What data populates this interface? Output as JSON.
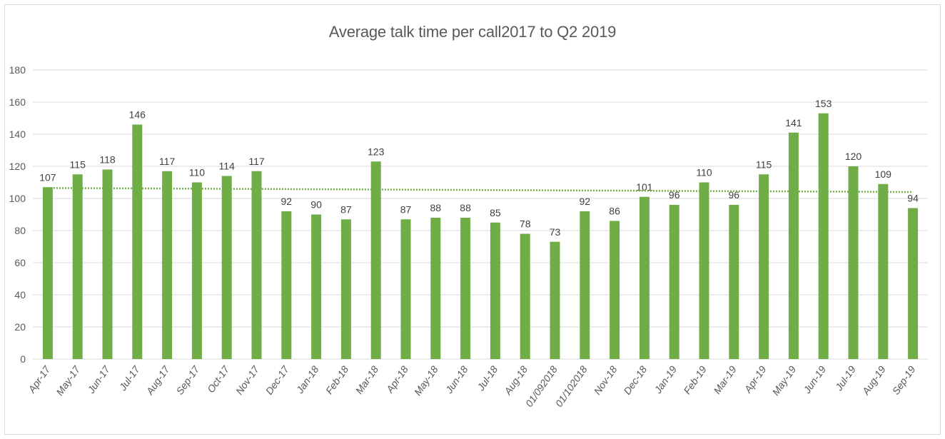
{
  "chart_data": {
    "type": "bar",
    "title": "Average talk time  per call2017 to Q2 2019",
    "xlabel": "",
    "ylabel": "",
    "ylim": [
      0,
      180
    ],
    "yticks": [
      0,
      20,
      40,
      60,
      80,
      100,
      120,
      140,
      160,
      180
    ],
    "grid": true,
    "trendline": {
      "style": "dotted",
      "start": 106.5,
      "end": 104
    },
    "categories": [
      "Apr-17",
      "May-17",
      "Jun-17",
      "Jul-17",
      "Aug-17",
      "Sep-17",
      "Oct-17",
      "Nov-17",
      "Dec-17",
      "Jan-18",
      "Feb-18",
      "Mar-18",
      "Apr-18",
      "May-18",
      "Jun-18",
      "Jul-18",
      "Aug-18",
      "01/092018",
      "01/102018",
      "Nov-18",
      "Dec-18",
      "Jan-19",
      "Feb-19",
      "Mar-19",
      "Apr-19",
      "May-19",
      "Jun-19",
      "Jul-19",
      "Aug-19",
      "Sep-19"
    ],
    "values": [
      107,
      115,
      118,
      146,
      117,
      110,
      114,
      117,
      92,
      90,
      87,
      123,
      87,
      88,
      88,
      85,
      78,
      73,
      92,
      86,
      101,
      96,
      110,
      96,
      115,
      141,
      153,
      120,
      109,
      94
    ]
  },
  "colors": {
    "bar": "#70ad47",
    "trendline": "#70ad47",
    "grid": "#d9d9d9",
    "axis_text": "#595959"
  }
}
